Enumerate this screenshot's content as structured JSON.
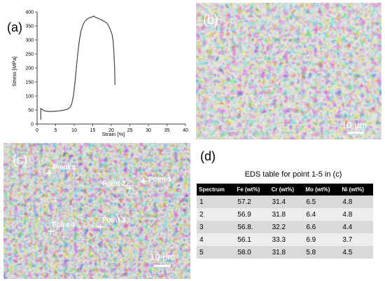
{
  "panels": {
    "a": "(a)",
    "b": "(b)",
    "c": "(c)",
    "d": "(d)"
  },
  "chart_data": {
    "type": "line",
    "xlabel": "Strain [%]",
    "ylabel": "Stress [MPa]",
    "xlim": [
      0,
      40
    ],
    "ylim": [
      0,
      400
    ],
    "xticks": [
      0,
      5,
      10,
      15,
      20,
      25,
      30,
      35,
      40
    ],
    "yticks": [
      0,
      50,
      100,
      150,
      200,
      250,
      300,
      350,
      400
    ],
    "grid": false,
    "series": [
      {
        "x": [
          1.0,
          1.0,
          2,
          3,
          4,
          5,
          6,
          7,
          8,
          8.8,
          9.3,
          9.8,
          10.3,
          10.8,
          11.3,
          11.8,
          12.3,
          12.8,
          13.3,
          13.8,
          14.3,
          14.8,
          15.3,
          15.8,
          16.3,
          16.8,
          17.3,
          17.8,
          18.3,
          18.8,
          19.3,
          19.8,
          20.2,
          20.5,
          20.7,
          20.9,
          21.0
        ],
        "y": [
          15,
          55,
          47,
          45,
          45,
          46,
          47,
          49,
          52,
          58,
          70,
          100,
          160,
          230,
          290,
          330,
          352,
          365,
          372,
          377,
          380,
          382,
          385,
          380,
          378,
          375,
          372,
          368,
          365,
          360,
          350,
          335,
          320,
          295,
          255,
          200,
          140
        ]
      }
    ]
  },
  "sem_b": {
    "scalebar": "10 μm"
  },
  "sem_c": {
    "scalebar": "10 μm",
    "points": [
      {
        "label": "Point 5"
      },
      {
        "label": "Point 2"
      },
      {
        "label": "Point 1"
      },
      {
        "label": "Point 4"
      },
      {
        "label": "Point 3"
      }
    ]
  },
  "eds": {
    "title": "EDS table for point 1-5 in (c)",
    "headers": [
      "Spectrum",
      "Fe (wt%)",
      "Cr (wt%)",
      "Mo (wt%)",
      "Ni (wt%)"
    ],
    "rows": [
      [
        "1",
        "57.2",
        "31.4",
        "6.5",
        "4.8"
      ],
      [
        "2",
        "56.9",
        "31.8",
        "6.4",
        "4.8"
      ],
      [
        "3",
        "56.8.",
        "32.2",
        "6.6",
        "4.4"
      ],
      [
        "4",
        "56.1",
        "33.3",
        "6.9",
        "3.7"
      ],
      [
        "5",
        "58.0",
        "31.8",
        "5.8",
        "4.5"
      ]
    ]
  }
}
